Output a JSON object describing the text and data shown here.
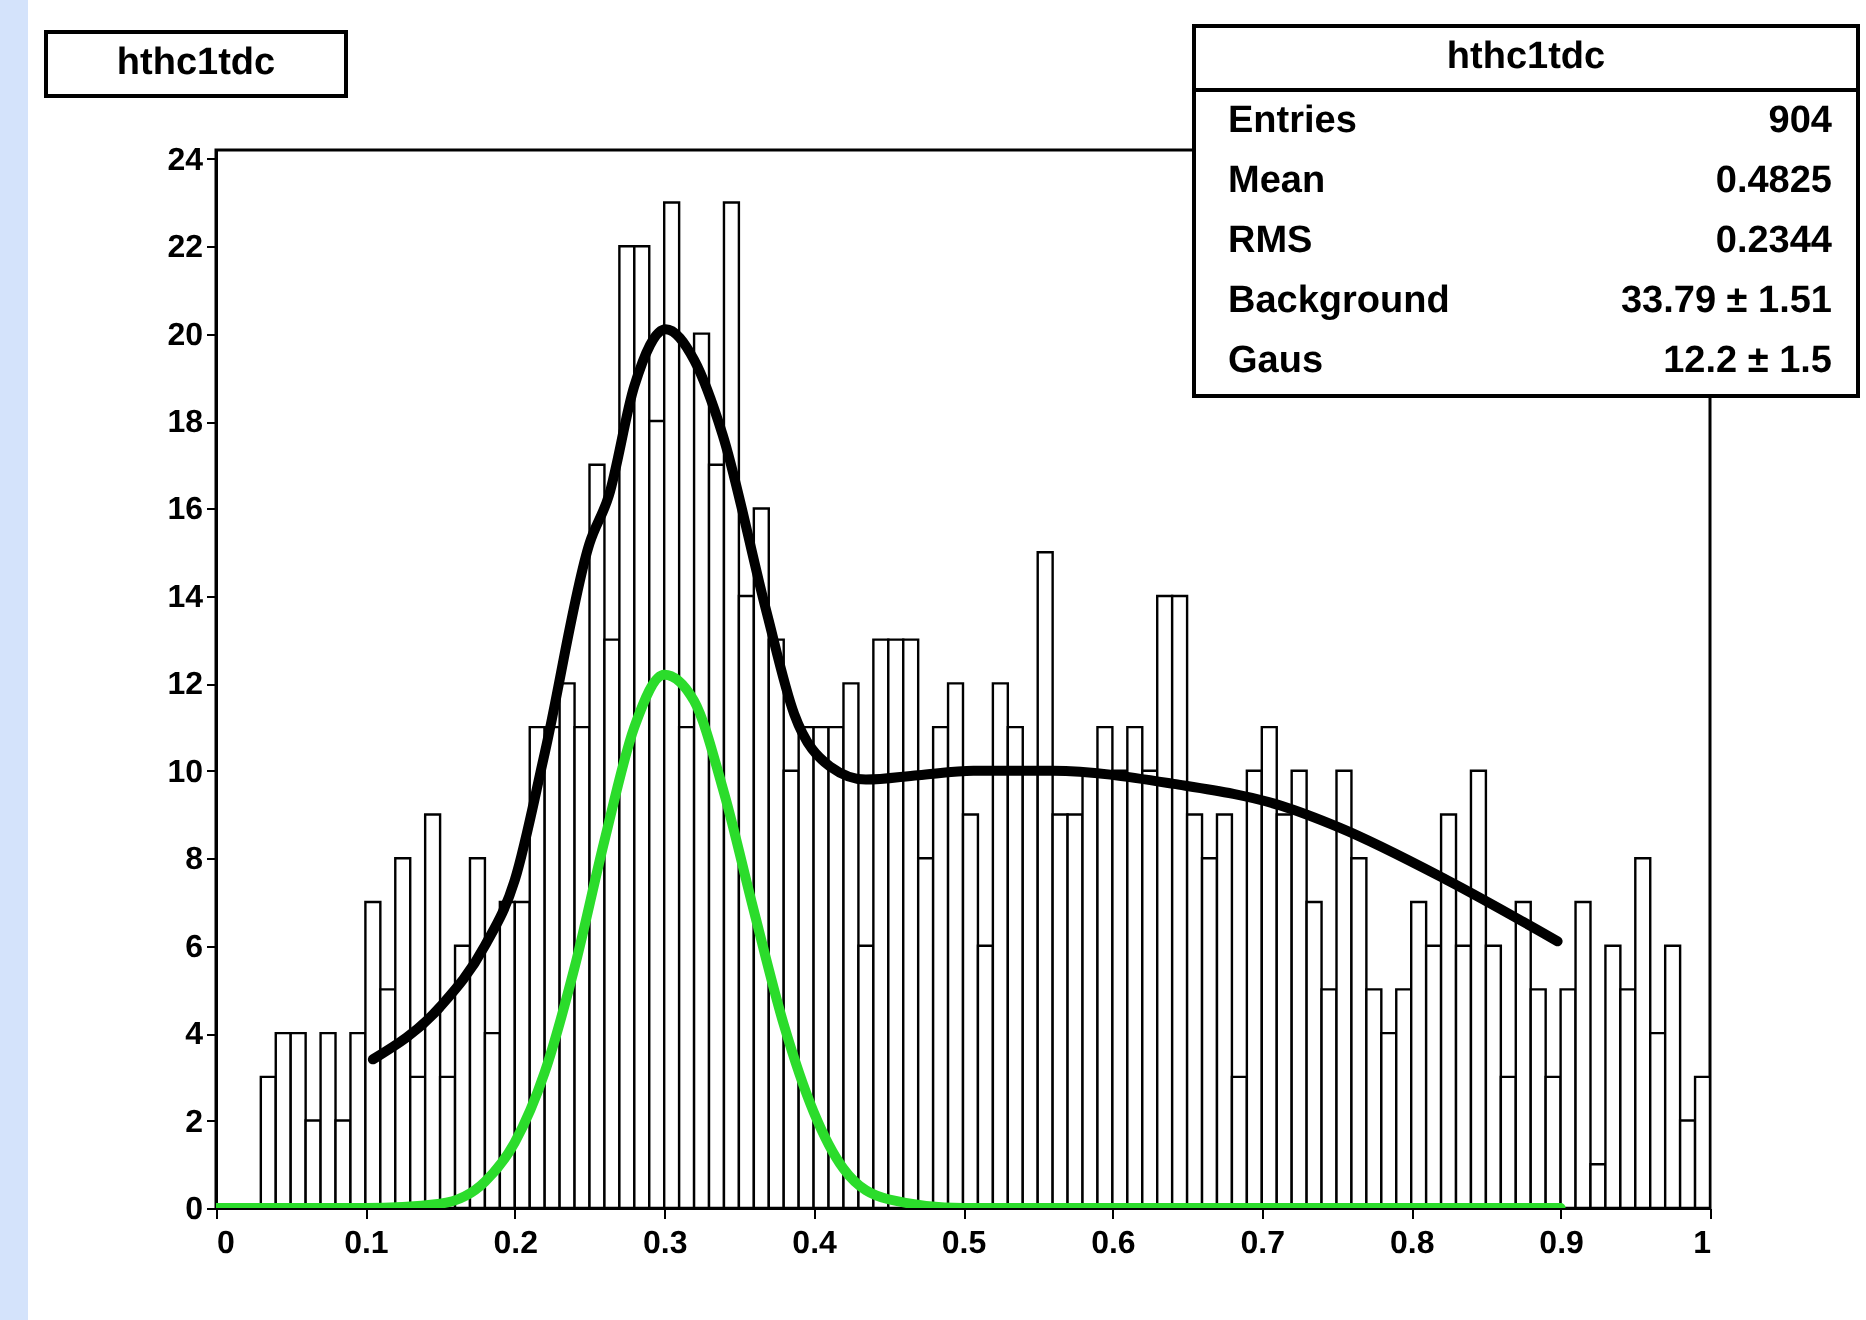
{
  "chart_data": {
    "type": "histogram",
    "title": "hthc1tdc",
    "annotations": [
      "hthc1tdc",
      "Entries",
      "904",
      "Mean",
      "0.4825",
      "RMS",
      "0.2344",
      "Background",
      "33.79 ± 1.51",
      "Gaus",
      "12.2 ± 1.5"
    ],
    "xlim": [
      0,
      1
    ],
    "xticks": [
      0,
      0.1,
      0.2,
      0.3,
      0.4,
      0.5,
      0.6,
      0.7,
      0.8,
      0.9,
      1
    ],
    "ylim": [
      0,
      24.2
    ],
    "yticks": [
      0,
      2,
      4,
      6,
      8,
      10,
      12,
      14,
      16,
      18,
      20,
      22,
      24
    ],
    "series": [
      {
        "color": "#000000",
        "bins": [
          0,
          0.01,
          0.02,
          0.03,
          0.04,
          0.05,
          0.06,
          0.07,
          0.08,
          0.09,
          0.1,
          0.11,
          0.12,
          0.13,
          0.14,
          0.15,
          0.16,
          0.17,
          0.18,
          0.19,
          0.2,
          0.21,
          0.22,
          0.23,
          0.24,
          0.25,
          0.26,
          0.27,
          0.28,
          0.29,
          0.3,
          0.31,
          0.32,
          0.33,
          0.34,
          0.35,
          0.36,
          0.37,
          0.38,
          0.39,
          0.4,
          0.41,
          0.42,
          0.43,
          0.44,
          0.45,
          0.46,
          0.47,
          0.48,
          0.49,
          0.5,
          0.51,
          0.52,
          0.53,
          0.54,
          0.55,
          0.56,
          0.57,
          0.58,
          0.59,
          0.6,
          0.61,
          0.62,
          0.63,
          0.64,
          0.65,
          0.66,
          0.67,
          0.68,
          0.69,
          0.7,
          0.71,
          0.72,
          0.73,
          0.74,
          0.75,
          0.76,
          0.77,
          0.78,
          0.79,
          0.8,
          0.81,
          0.82,
          0.83,
          0.84,
          0.85,
          0.86,
          0.87,
          0.88,
          0.89,
          0.9,
          0.91,
          0.92,
          0.93,
          0.94,
          0.95,
          0.96,
          0.97,
          0.98,
          0.99,
          1
        ],
        "values": [
          0,
          0,
          0,
          3,
          4,
          4,
          2,
          4,
          2,
          4,
          7,
          5,
          8,
          3,
          9,
          3,
          6,
          8,
          4,
          7,
          7,
          11,
          11,
          12,
          11,
          17,
          13,
          22,
          22,
          18,
          23,
          11,
          20,
          17,
          23,
          14,
          16,
          13,
          10,
          11,
          11,
          11,
          12,
          6,
          13,
          13,
          13,
          8,
          11,
          12,
          9,
          6,
          12,
          11,
          10,
          15,
          9,
          9,
          10,
          11,
          10,
          11,
          10,
          14,
          14,
          9,
          8,
          9,
          3,
          10,
          11,
          9,
          10,
          7,
          5,
          10,
          8,
          5,
          4,
          5,
          7,
          6,
          9,
          6,
          10,
          6,
          3,
          7,
          5,
          3,
          5,
          7,
          1,
          6,
          5,
          8,
          4,
          6,
          2,
          3
        ]
      },
      {
        "type": "line",
        "color": "#000000",
        "x": [
          0.105,
          0.15,
          0.18,
          0.2,
          0.22,
          0.25,
          0.263,
          0.28,
          0.301,
          0.32,
          0.339,
          0.368,
          0.387,
          0.411,
          0.435,
          0.47,
          0.507,
          0.56,
          0.641,
          0.713,
          0.752,
          0.824,
          0.898
        ],
        "values": [
          3.4,
          4.6,
          6.0,
          7.5,
          10.4,
          15.2,
          16.3,
          18.8,
          20.1,
          19.4,
          17.7,
          13.7,
          11.3,
          10.1,
          9.8,
          9.9,
          10.0,
          10.0,
          9.7,
          9.2,
          8.7,
          7.5,
          6.1
        ]
      },
      {
        "type": "line",
        "color": "#2bdc2b",
        "x": [
          0,
          0.1,
          0.15,
          0.18,
          0.2,
          0.22,
          0.24,
          0.26,
          0.28,
          0.3,
          0.32,
          0.34,
          0.36,
          0.38,
          0.4,
          0.42,
          0.45,
          0.5,
          0.9
        ],
        "values": [
          0,
          0,
          0.1,
          0.6,
          1.5,
          3.1,
          5.5,
          8.4,
          11.0,
          12.2,
          11.6,
          9.5,
          6.8,
          4.2,
          2.2,
          0.9,
          0.2,
          0,
          0
        ]
      }
    ]
  }
}
